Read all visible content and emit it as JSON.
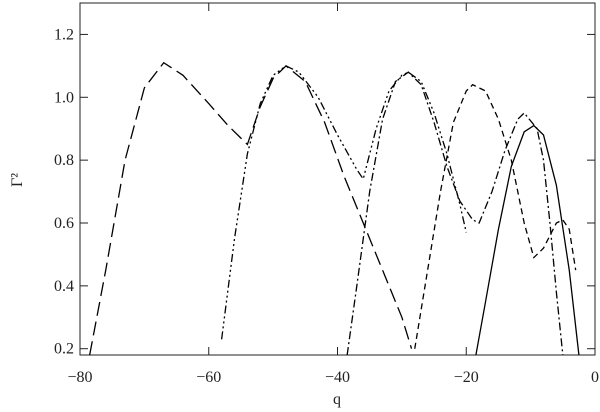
{
  "chart_data": {
    "type": "line",
    "xlabel": "q",
    "ylabel": "Γ²",
    "xlim": [
      -80,
      0
    ],
    "ylim": [
      0.18,
      1.3
    ],
    "xticks": [
      {
        "value": -80,
        "label": "−80"
      },
      {
        "value": -60,
        "label": "−60"
      },
      {
        "value": -40,
        "label": "−40"
      },
      {
        "value": -20,
        "label": "−20"
      },
      0
    ],
    "yticks": [
      0.2,
      0.4,
      0.6,
      0.8,
      {
        "value": 1.0,
        "label": "1.0"
      },
      1.2
    ],
    "series": [
      {
        "color": "#000000",
        "dash": "",
        "x": [
          -18.5,
          -17,
          -15,
          -13,
          -11,
          -9.5,
          -8,
          -6,
          -4,
          -2.5
        ],
        "values": [
          0.18,
          0.35,
          0.58,
          0.78,
          0.89,
          0.91,
          0.88,
          0.72,
          0.45,
          0.18
        ]
      },
      {
        "color": "#000000",
        "dash": "14,6",
        "x": [
          -78.5,
          -76,
          -73,
          -70,
          -67,
          -64,
          -60,
          -57,
          -54,
          -52,
          -50,
          -48,
          -45,
          -42,
          -39,
          -36,
          -33,
          -30,
          -28.5
        ],
        "values": [
          0.18,
          0.45,
          0.8,
          1.03,
          1.11,
          1.07,
          0.98,
          0.91,
          0.85,
          0.97,
          1.06,
          1.1,
          1.05,
          0.92,
          0.75,
          0.6,
          0.45,
          0.3,
          0.2
        ]
      },
      {
        "color": "#000000",
        "dash": "8,3,2,3,2,3,2,3",
        "x": [
          -58,
          -56,
          -54,
          -52,
          -50,
          -48,
          -46,
          -43,
          -40,
          -37,
          -36,
          -34,
          -32,
          -30,
          -29,
          -27,
          -25,
          -23,
          -21,
          -20
        ],
        "values": [
          0.23,
          0.55,
          0.82,
          0.98,
          1.07,
          1.1,
          1.08,
          1.0,
          0.88,
          0.77,
          0.74,
          0.9,
          1.02,
          1.07,
          1.08,
          1.05,
          0.95,
          0.82,
          0.66,
          0.57
        ]
      },
      {
        "color": "#000000",
        "dash": "8,3,2,3",
        "x": [
          -38.5,
          -37,
          -35,
          -33,
          -31,
          -29,
          -27,
          -25,
          -23,
          -21,
          -19,
          -18,
          -16,
          -14,
          -12,
          -11,
          -9,
          -8,
          -7,
          -6,
          -5
        ],
        "values": [
          0.18,
          0.4,
          0.7,
          0.93,
          1.05,
          1.08,
          1.04,
          0.92,
          0.78,
          0.67,
          0.61,
          0.6,
          0.7,
          0.83,
          0.93,
          0.95,
          0.9,
          0.8,
          0.6,
          0.38,
          0.18
        ]
      },
      {
        "color": "#000000",
        "dash": "6,4",
        "x": [
          -28,
          -26,
          -24,
          -22,
          -20,
          -19,
          -17,
          -15,
          -13,
          -11,
          -9.5,
          -8,
          -6,
          -5,
          -4,
          -3
        ],
        "values": [
          0.2,
          0.45,
          0.7,
          0.92,
          1.02,
          1.04,
          1.02,
          0.93,
          0.8,
          0.6,
          0.49,
          0.52,
          0.6,
          0.61,
          0.58,
          0.45
        ]
      }
    ]
  }
}
